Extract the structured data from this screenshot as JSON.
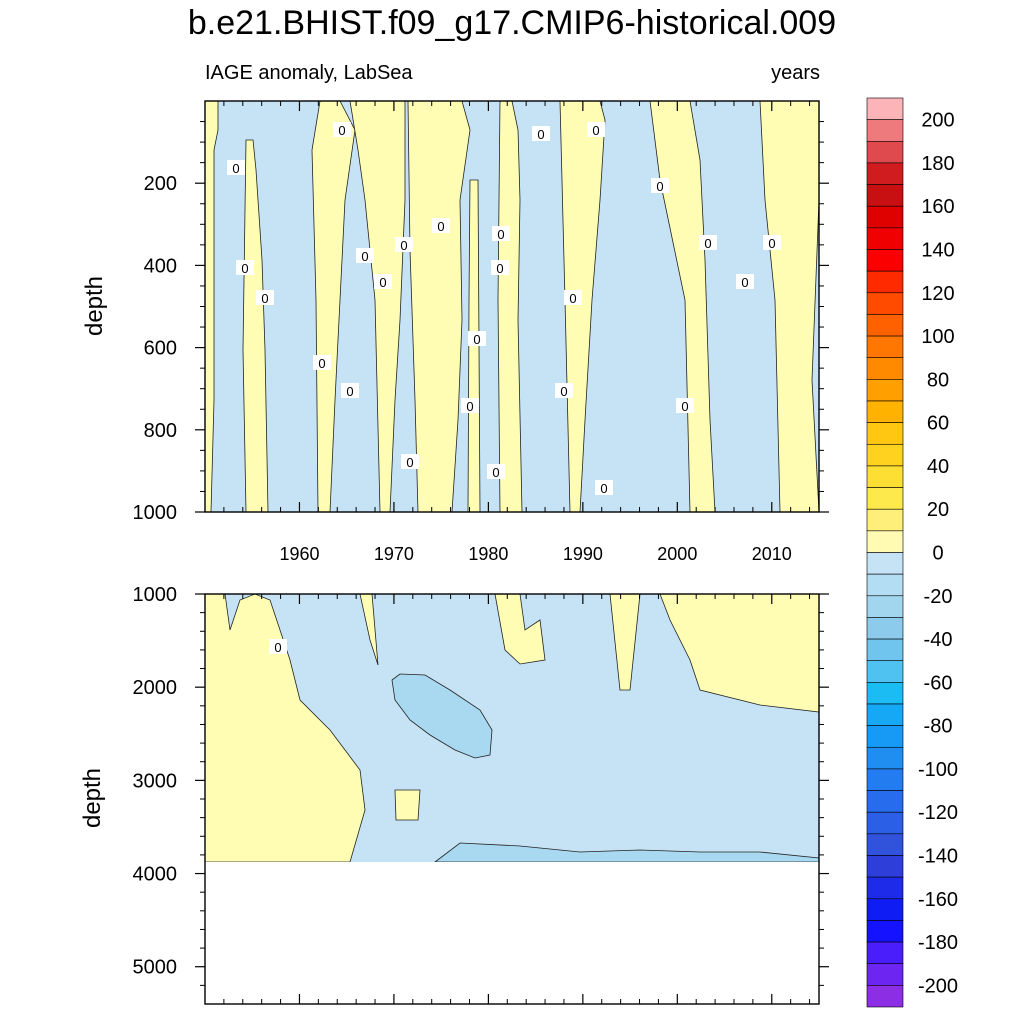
{
  "title": "b.e21.BHIST.f09_g17.CMIP6-historical.009",
  "subtitle_left": "IAGE anomaly, LabSea",
  "subtitle_right": "years",
  "colors": {
    "positive_fill": "#fffcb4",
    "negative_fill": "#c5e3f5",
    "deep_negative_fill": "#a9d9f1",
    "contour_line": "#222222"
  },
  "chart_data": [
    {
      "type": "heatmap",
      "panel": "upper",
      "ylabel": "depth",
      "x_ticks": [
        "1960",
        "1970",
        "1980",
        "1990",
        "2000",
        "2010"
      ],
      "x_tick_values": [
        1960,
        1970,
        1980,
        1990,
        2000,
        2010
      ],
      "y_ticks": [
        "200",
        "400",
        "600",
        "800",
        "1000"
      ],
      "y_tick_values": [
        200,
        400,
        600,
        800,
        1000
      ],
      "xlim": [
        1950,
        2015
      ],
      "ylim": [
        0,
        1000
      ],
      "y_reversed": true,
      "contour_labels": [
        "0",
        "0",
        "0",
        "0",
        "0",
        "0",
        "0",
        "0",
        "0",
        "0",
        "0",
        "0",
        "0",
        "0",
        "0",
        "0",
        "0",
        "0",
        "0",
        "0",
        "0",
        "0",
        "0",
        "0",
        "0",
        "0",
        "0"
      ]
    },
    {
      "type": "heatmap",
      "panel": "lower",
      "ylabel": "depth",
      "y_ticks": [
        "1000",
        "2000",
        "3000",
        "4000",
        "5000"
      ],
      "y_tick_values": [
        1000,
        2000,
        3000,
        4000,
        5000
      ],
      "xlim": [
        1950,
        2015
      ],
      "ylim": [
        1000,
        5400
      ],
      "y_reversed": true,
      "contour_labels": [
        "0"
      ]
    },
    {
      "type": "colorbar",
      "levels": [
        200,
        190,
        180,
        170,
        160,
        150,
        140,
        130,
        120,
        110,
        100,
        90,
        80,
        70,
        60,
        50,
        40,
        30,
        20,
        10,
        0,
        -10,
        -20,
        -30,
        -40,
        -50,
        -60,
        -70,
        -80,
        -90,
        -100,
        -110,
        -120,
        -130,
        -140,
        -150,
        -160,
        -170,
        -180,
        -190,
        -200
      ],
      "tick_labels": [
        "200",
        "180",
        "160",
        "140",
        "120",
        "100",
        "80",
        "60",
        "40",
        "20",
        "0",
        "-20",
        "-40",
        "-60",
        "-80",
        "-100",
        "-120",
        "-140",
        "-160",
        "-180",
        "-200"
      ],
      "colors": [
        "#fcb4b8",
        "#ef7a7e",
        "#df4a4f",
        "#d11c1f",
        "#c80f12",
        "#df0000",
        "#f00000",
        "#fa0000",
        "#ff2a00",
        "#ff4b00",
        "#ff6100",
        "#ff7600",
        "#ff8a00",
        "#ffa000",
        "#ffb300",
        "#ffc612",
        "#ffd21f",
        "#fdde33",
        "#fee94d",
        "#feee7a",
        "#fffbb3",
        "#c5e3f5",
        "#b2ddf3",
        "#a1d6ee",
        "#8ccbec",
        "#6fc5ee",
        "#4fc2f1",
        "#1bbcf4",
        "#16a8f5",
        "#169af5",
        "#208ef1",
        "#237df0",
        "#266cec",
        "#2b5fe6",
        "#3153dc",
        "#2e3ed9",
        "#1e2be8",
        "#0f1cf3",
        "#1512ff",
        "#4a1dfb",
        "#6d26f1",
        "#8c2ee4"
      ]
    }
  ]
}
